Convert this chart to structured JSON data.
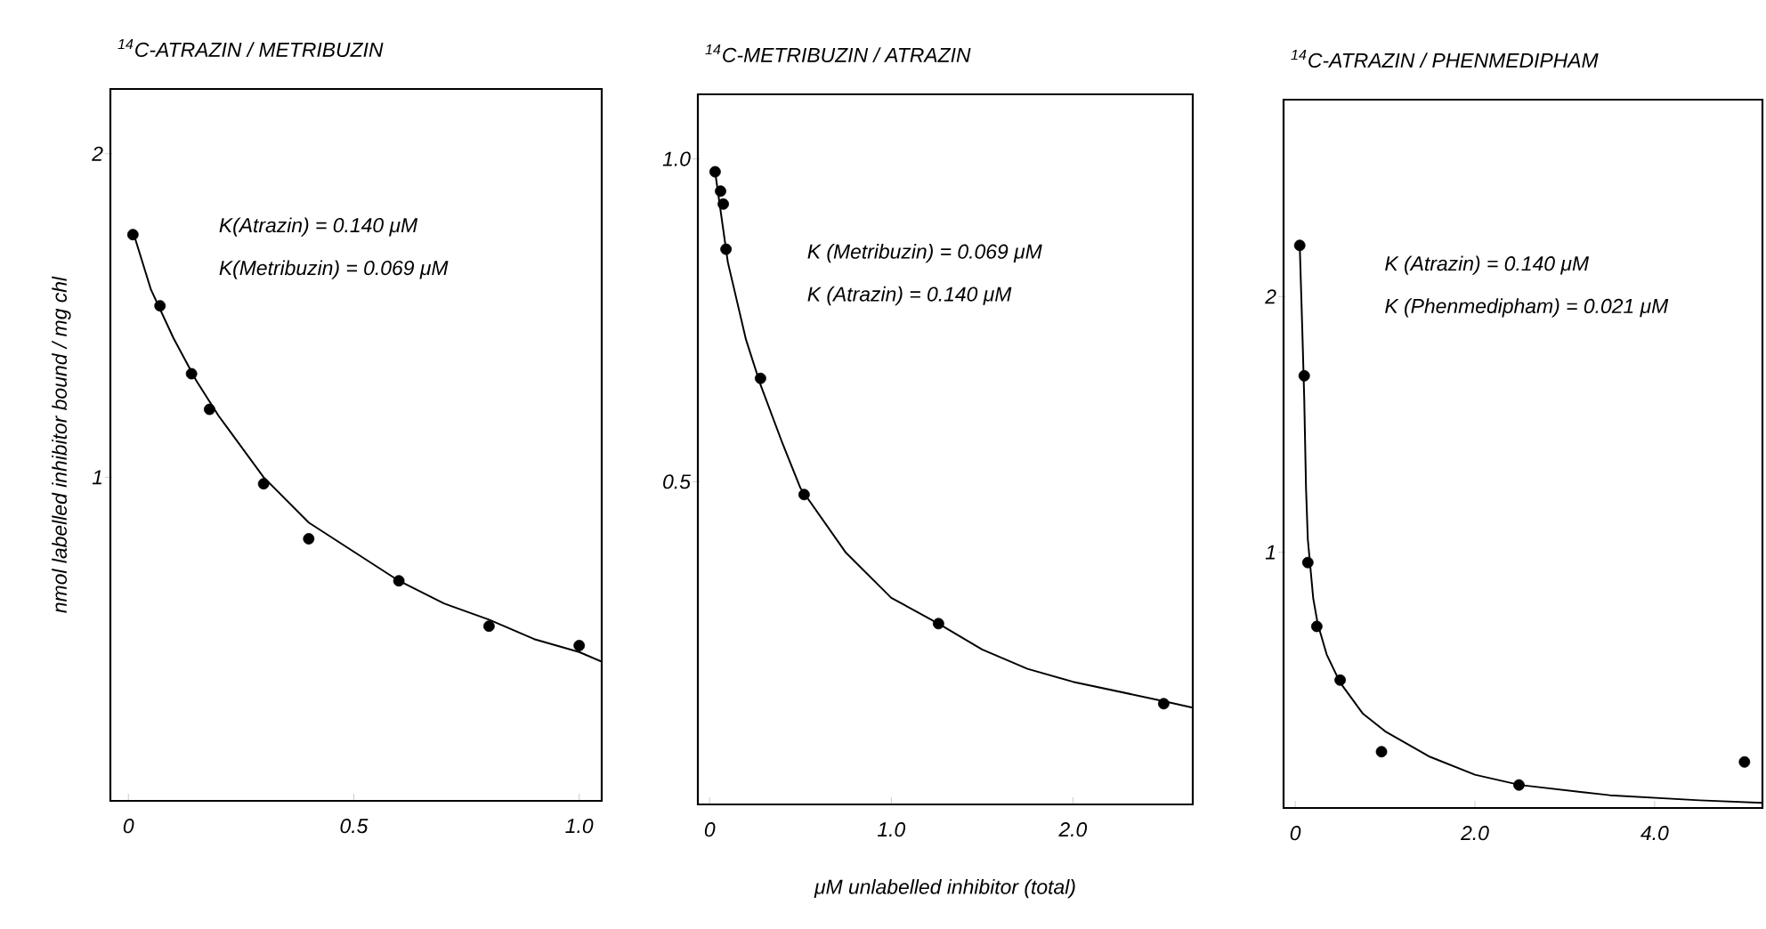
{
  "chart_data": [
    {
      "type": "scatter",
      "title": "$^{14}$C-ATRAZIN / METRIBUZIN",
      "ylabel": "nmol labelled inhibitor bound / mg chl",
      "annotations": [
        "K(Atrazin) = 0.140 μM",
        "K(Metribuzin) = 0.069 μM"
      ],
      "xlim": [
        -0.04,
        1.05
      ],
      "ylim": [
        0,
        2.2
      ],
      "xticks": [
        0,
        0.5,
        {
          "value": 1,
          "label": "1.0"
        }
      ],
      "yticks": [
        1,
        2
      ],
      "series": [
        {
          "color": "#000000",
          "marker": "circle",
          "x": [
            0.01,
            0.07,
            0.14,
            0.18,
            0.3,
            0.4,
            0.6,
            0.8,
            1.0
          ],
          "values": [
            1.75,
            1.53,
            1.32,
            1.21,
            0.98,
            0.81,
            0.68,
            0.54,
            0.48
          ]
        },
        {
          "type": "line",
          "color": "#000000",
          "marker": "none",
          "line_style": "solid",
          "x": [
            0.01,
            0.05,
            0.1,
            0.15,
            0.2,
            0.3,
            0.4,
            0.5,
            0.6,
            0.7,
            0.8,
            0.9,
            1.0,
            1.05
          ],
          "values": [
            1.76,
            1.58,
            1.43,
            1.3,
            1.19,
            1.0,
            0.86,
            0.77,
            0.68,
            0.61,
            0.56,
            0.5,
            0.46,
            0.43
          ]
        }
      ]
    },
    {
      "type": "scatter",
      "title": "$^{14}$C-METRIBUZIN / ATRAZIN",
      "xlabel": "μM unlabelled inhibitor (total)",
      "annotations": [
        "K (Metribuzin) = 0.069 μM",
        "K (Atrazin) = 0.140 μM"
      ],
      "xlim": [
        -0.065,
        2.66
      ],
      "ylim": [
        0,
        1.1
      ],
      "xticks": [
        0,
        {
          "value": 1,
          "label": "1.0"
        },
        {
          "value": 2,
          "label": "2.0"
        }
      ],
      "yticks": [
        0.5,
        {
          "value": 1,
          "label": "1.0"
        }
      ],
      "series": [
        {
          "color": "#000000",
          "marker": "circle",
          "x": [
            0.03,
            0.06,
            0.075,
            0.09,
            0.28,
            0.52,
            1.26,
            2.5
          ],
          "values": [
            0.98,
            0.95,
            0.93,
            0.86,
            0.66,
            0.48,
            0.28,
            0.156
          ]
        },
        {
          "type": "line",
          "color": "#000000",
          "marker": "none",
          "line_style": "solid",
          "x": [
            0.03,
            0.06,
            0.1,
            0.15,
            0.2,
            0.28,
            0.4,
            0.5,
            0.75,
            1.0,
            1.26,
            1.5,
            1.75,
            2.0,
            2.5,
            2.66
          ],
          "values": [
            0.98,
            0.92,
            0.84,
            0.78,
            0.72,
            0.65,
            0.56,
            0.49,
            0.39,
            0.32,
            0.28,
            0.24,
            0.21,
            0.19,
            0.16,
            0.15
          ]
        }
      ]
    },
    {
      "type": "scatter",
      "title": "$^{14}$C-ATRAZIN / PHENMEDIPHAM",
      "annotations": [
        "K (Atrazin) = 0.140 μM",
        "K (Phenmedipham) = 0.021 μM"
      ],
      "xlim": [
        -0.13,
        5.2
      ],
      "ylim": [
        0,
        2.77
      ],
      "xticks": [
        0,
        {
          "value": 2,
          "label": "2.0"
        },
        {
          "value": 4,
          "label": "4.0"
        }
      ],
      "yticks": [
        1,
        2
      ],
      "series": [
        {
          "color": "#000000",
          "marker": "circle",
          "x": [
            0.05,
            0.1,
            0.14,
            0.24,
            0.5,
            0.96,
            2.49,
            5.0
          ],
          "values": [
            2.2,
            1.69,
            0.96,
            0.71,
            0.5,
            0.22,
            0.09,
            0.18
          ]
        },
        {
          "type": "line",
          "color": "#000000",
          "marker": "none",
          "line_style": "solid",
          "x": [
            0.05,
            0.08,
            0.1,
            0.12,
            0.14,
            0.2,
            0.25,
            0.35,
            0.5,
            0.75,
            1.0,
            1.5,
            2.0,
            2.5,
            3.5,
            4.5,
            5.2
          ],
          "values": [
            2.2,
            1.85,
            1.6,
            1.25,
            1.05,
            0.82,
            0.72,
            0.6,
            0.49,
            0.37,
            0.3,
            0.2,
            0.13,
            0.09,
            0.05,
            0.03,
            0.02
          ]
        }
      ]
    }
  ]
}
